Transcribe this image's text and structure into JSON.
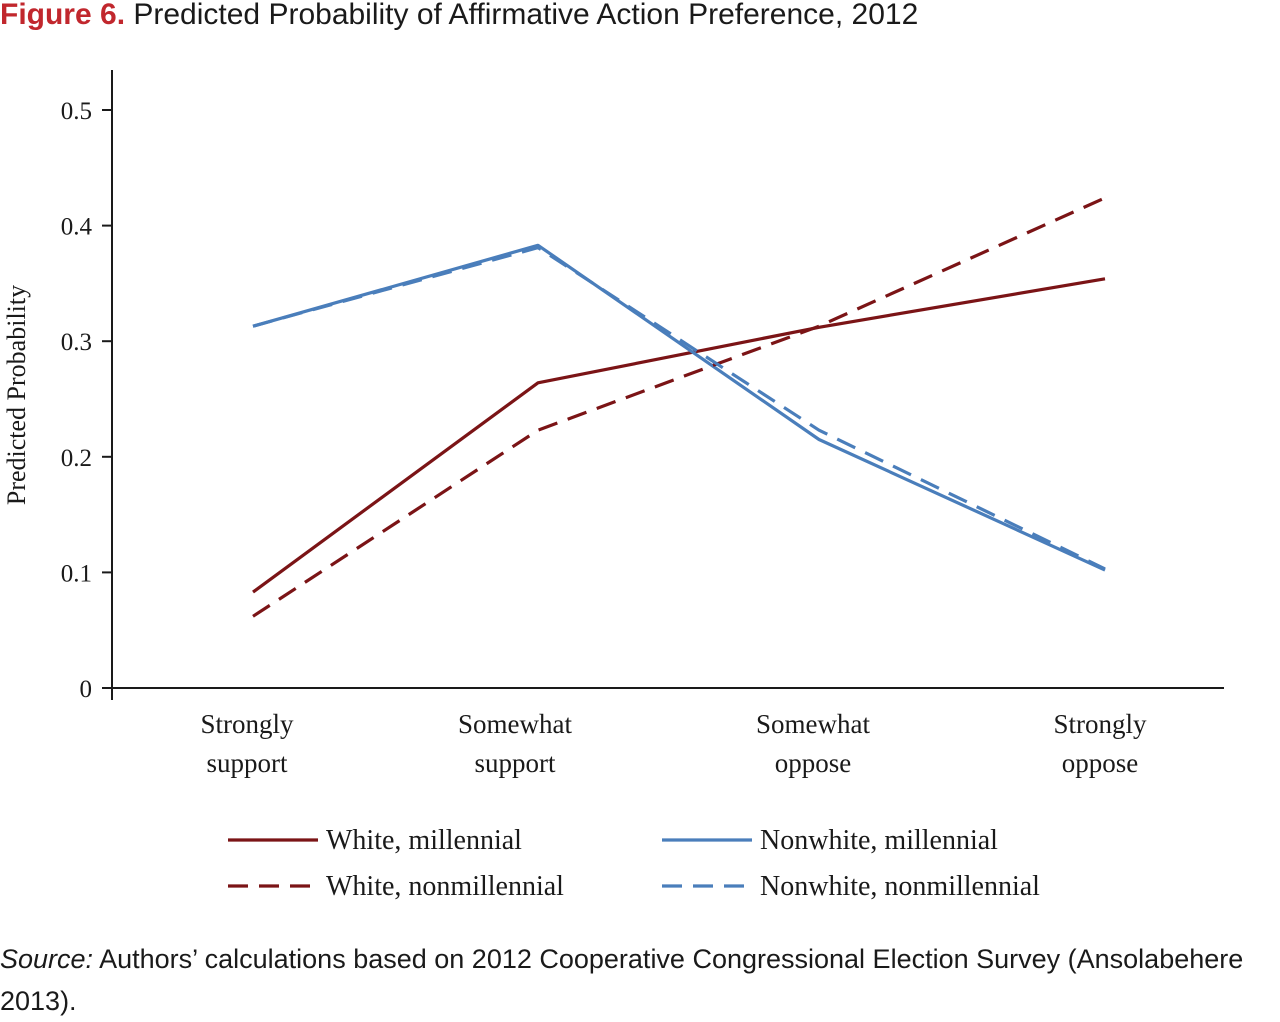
{
  "figure": {
    "label": "Figure 6.",
    "title": "Predicted Probability of Affirmative Action Preference, 2012"
  },
  "chart_data": {
    "type": "line",
    "ylabel": "Predicted Probability",
    "ylim": [
      0,
      0.5
    ],
    "yticks": [
      "0",
      "0.1",
      "0.2",
      "0.3",
      "0.4",
      "0.5"
    ],
    "categories": [
      [
        "Strongly",
        "support"
      ],
      [
        "Somewhat",
        "support"
      ],
      [
        "Somewhat",
        "oppose"
      ],
      [
        "Strongly",
        "oppose"
      ]
    ],
    "series": [
      {
        "name": "White, millennial",
        "values": [
          0.083,
          0.264,
          0.312,
          0.354
        ],
        "color": "#7b1416",
        "style": "solid"
      },
      {
        "name": "Nonwhite, millennial",
        "values": [
          0.313,
          0.383,
          0.215,
          0.102
        ],
        "color": "#4a7ebb",
        "style": "solid"
      },
      {
        "name": "White, nonmillennial",
        "values": [
          0.062,
          0.223,
          0.313,
          0.424
        ],
        "color": "#7b1416",
        "style": "dashed"
      },
      {
        "name": "Nonwhite, nonmillennial",
        "values": [
          0.313,
          0.381,
          0.223,
          0.103
        ],
        "color": "#4a7ebb",
        "style": "dashed"
      }
    ],
    "grid": false,
    "legend_position": "bottom"
  },
  "source": {
    "label": "Source:",
    "text": " Authors’ calculations based on 2012 Cooperative Congressional Election Survey (Ansolabehere 2013)."
  }
}
